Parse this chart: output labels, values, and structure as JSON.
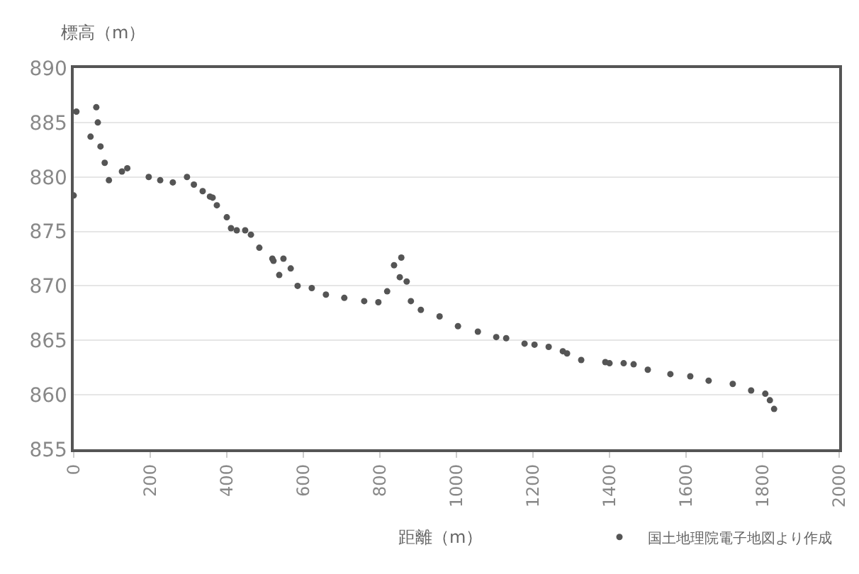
{
  "chart_data": {
    "type": "scatter",
    "xlabel": "距離（m）",
    "ylabel": "標高（m）",
    "xlim": [
      0,
      2000
    ],
    "xticks": [
      0,
      200,
      400,
      600,
      800,
      1000,
      1200,
      1400,
      1600,
      1800,
      2000
    ],
    "ylim": [
      855,
      890
    ],
    "yticks": [
      855,
      860,
      865,
      870,
      875,
      880,
      885,
      890
    ],
    "grid": "y",
    "legend": "bottom",
    "marker": "circle",
    "series": [
      {
        "name": "国土地理院電子地図より作成",
        "color": "#555555",
        "x": [
          0,
          7,
          44,
          59,
          63,
          70,
          81,
          92,
          126,
          140,
          196,
          226,
          259,
          296,
          314,
          337,
          356,
          363,
          374,
          400,
          411,
          426,
          448,
          463,
          485,
          519,
          522,
          537,
          548,
          567,
          585,
          622,
          659,
          707,
          759,
          796,
          819,
          837,
          852,
          856,
          870,
          881,
          907,
          956,
          1004,
          1056,
          1104,
          1130,
          1178,
          1204,
          1241,
          1278,
          1289,
          1326,
          1389,
          1400,
          1437,
          1463,
          1500,
          1559,
          1611,
          1659,
          1722,
          1770,
          1807,
          1819,
          1830
        ],
        "values": [
          878.3,
          886,
          883.7,
          886.4,
          885,
          882.8,
          881.3,
          879.7,
          880.5,
          880.8,
          880,
          879.7,
          879.5,
          880,
          879.3,
          878.7,
          878.2,
          878.1,
          877.4,
          876.3,
          875.3,
          875.1,
          875.1,
          874.7,
          873.5,
          872.5,
          872.3,
          871,
          872.5,
          871.6,
          870,
          869.8,
          869.2,
          868.9,
          868.6,
          868.5,
          869.5,
          871.9,
          870.8,
          872.6,
          870.4,
          868.6,
          867.8,
          867.2,
          866.3,
          865.8,
          865.3,
          865.2,
          864.7,
          864.6,
          864.4,
          864,
          863.8,
          863.2,
          863,
          862.9,
          862.9,
          862.8,
          862.3,
          861.9,
          861.7,
          861.3,
          861,
          860.4,
          860.1,
          859.5,
          858.7
        ]
      }
    ]
  }
}
